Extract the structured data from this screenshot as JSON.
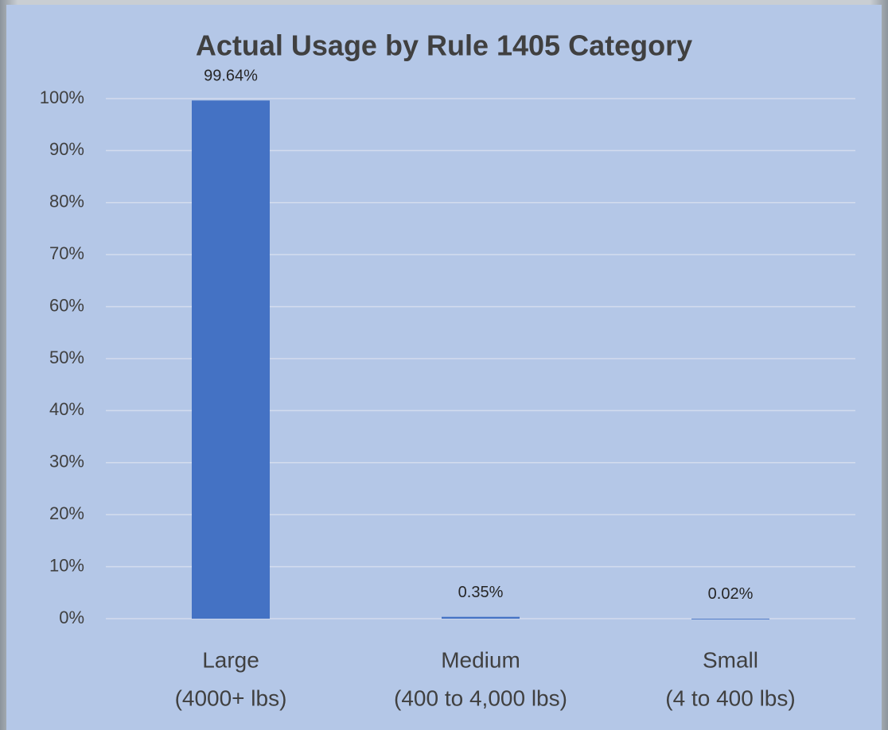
{
  "chart_data": {
    "type": "bar",
    "title": "Actual Usage by Rule 1405 Category",
    "categories": [
      [
        "Large",
        "(4000+ lbs)"
      ],
      [
        "Medium",
        "(400 to 4,000 lbs)"
      ],
      [
        "Small",
        "(4 to 400 lbs)"
      ]
    ],
    "values": [
      99.64,
      0.35,
      0.02
    ],
    "value_labels": [
      "99.64%",
      "0.35%",
      "0.02%"
    ],
    "color": "#4472c4",
    "ylim": [
      0,
      100
    ],
    "yticks": [
      {
        "value": 0,
        "label": "0%"
      },
      {
        "value": 10,
        "label": "10%"
      },
      {
        "value": 20,
        "label": "20%"
      },
      {
        "value": 30,
        "label": "30%"
      },
      {
        "value": 40,
        "label": "40%"
      },
      {
        "value": 50,
        "label": "50%"
      },
      {
        "value": 60,
        "label": "60%"
      },
      {
        "value": 70,
        "label": "70%"
      },
      {
        "value": 80,
        "label": "80%"
      },
      {
        "value": 90,
        "label": "90%"
      },
      {
        "value": 100,
        "label": "100%"
      }
    ],
    "grid": true
  }
}
